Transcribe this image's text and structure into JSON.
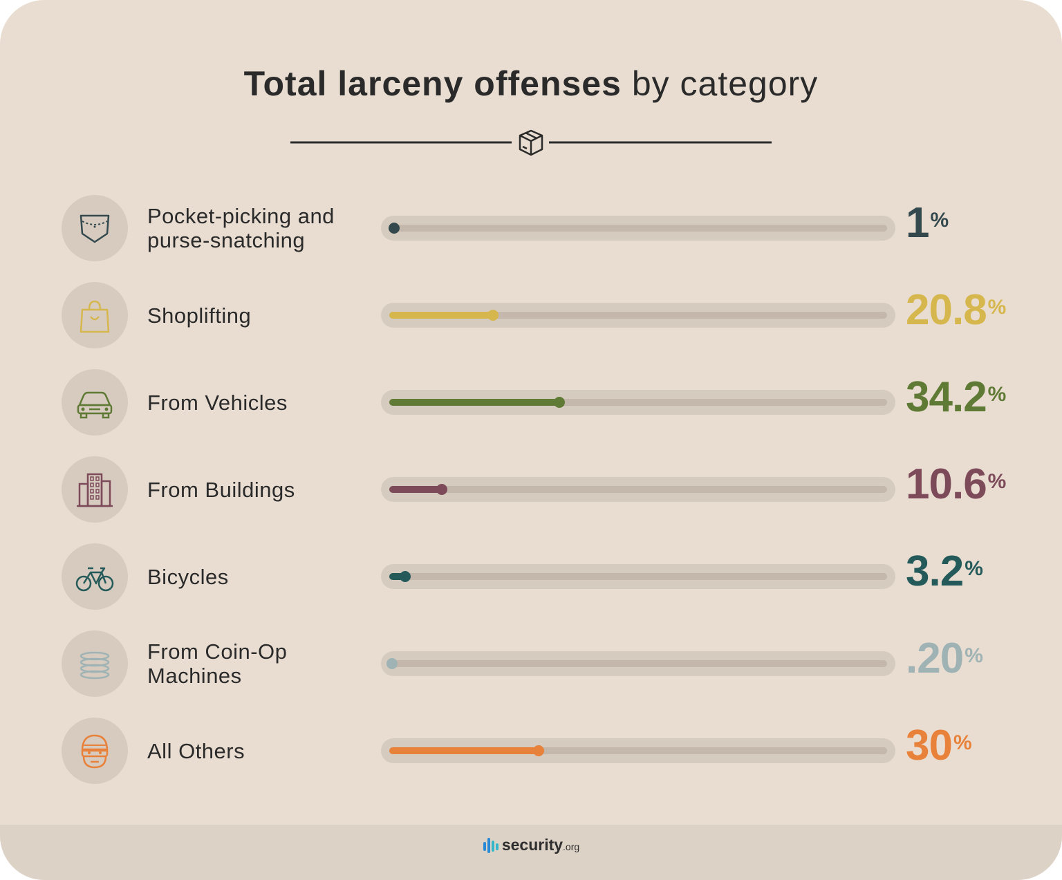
{
  "title": {
    "bold": "Total larceny offenses",
    "light": "by category"
  },
  "divider_icon": "package-icon",
  "chart_data": {
    "type": "bar",
    "orientation": "horizontal",
    "title": "Total larceny offenses by category",
    "unit": "%",
    "xlim": [
      0,
      100
    ],
    "categories": [
      "Pocket-picking and purse-snatching",
      "Shoplifting",
      "From Vehicles",
      "From Buildings",
      "Bicycles",
      "From Coin-Op Machines",
      "All Others"
    ],
    "values": [
      1,
      20.8,
      34.2,
      10.6,
      3.2,
      0.2,
      30
    ],
    "rows": [
      {
        "label": "Pocket-picking and purse-snatching",
        "value": 1,
        "display": "1",
        "pct": "%",
        "color": "#34494d",
        "icon": "pocket-icon"
      },
      {
        "label": "Shoplifting",
        "value": 20.8,
        "display": "20.8",
        "pct": "%",
        "color": "#d6b74e",
        "icon": "shopping-bag-icon"
      },
      {
        "label": "From Vehicles",
        "value": 34.2,
        "display": "34.2",
        "pct": "%",
        "color": "#5f7a35",
        "icon": "car-icon"
      },
      {
        "label": "From Buildings",
        "value": 10.6,
        "display": "10.6",
        "pct": "%",
        "color": "#7d4a5a",
        "icon": "building-icon"
      },
      {
        "label": "Bicycles",
        "value": 3.2,
        "display": "3.2",
        "pct": "%",
        "color": "#255a5a",
        "icon": "bicycle-icon"
      },
      {
        "label": "From Coin-Op Machines",
        "value": 0.2,
        "display": ".20",
        "pct": "%",
        "color": "#9fb3b4",
        "icon": "coins-icon"
      },
      {
        "label": "All Others",
        "value": 30,
        "display": "30",
        "pct": "%",
        "color": "#e8823a",
        "icon": "thief-icon"
      }
    ]
  },
  "footer": {
    "brand": "security",
    "suffix": ".org"
  }
}
